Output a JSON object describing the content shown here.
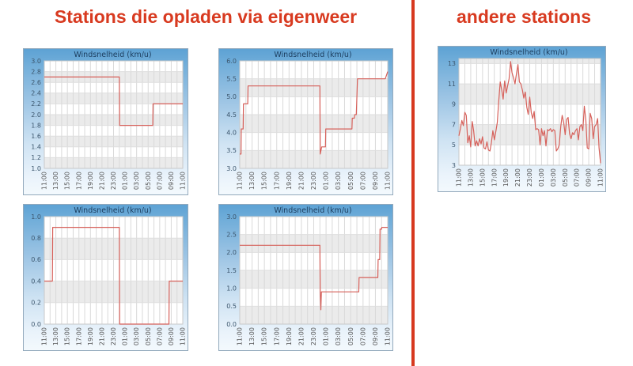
{
  "page": {
    "left_title": "Stations die opladen via eigenweer",
    "right_title": "andere stations",
    "colors": {
      "title_red": "#d83a20",
      "divider_red": "#d7381f",
      "line_red": "#d6605a",
      "panel_header_text": "#1c3d5e",
      "y_tick_text": "#3c566d",
      "x_tick_text": "#555555",
      "stripe_gray": "#ebebeb",
      "grid_gray": "#d9d9d9"
    }
  },
  "chart_data": [
    {
      "id": "eigenweer-1",
      "group": "Stations die opladen via eigenweer",
      "type": "line",
      "title": "Windsnelheid (km/u)",
      "line_color": "#d6605a",
      "ylim": [
        1.0,
        3.0
      ],
      "y_ticks": [
        1.0,
        1.2,
        1.4,
        1.6,
        1.8,
        2.0,
        2.2,
        2.4,
        2.6,
        2.8,
        3.0
      ],
      "y_decimals": 1,
      "x_unit": "hours after 11:00",
      "x_labels": [
        "11:00",
        "13:00",
        "15:00",
        "17:00",
        "19:00",
        "21:00",
        "23:00",
        "01:00",
        "03:00",
        "05:00",
        "07:00",
        "09:00",
        "11:00"
      ],
      "points": [
        [
          0,
          2.7
        ],
        [
          13.0,
          2.7
        ],
        [
          13.05,
          1.8
        ],
        [
          18.8,
          1.8
        ],
        [
          18.85,
          2.2
        ],
        [
          24,
          2.2
        ]
      ]
    },
    {
      "id": "eigenweer-2",
      "group": "Stations die opladen via eigenweer",
      "type": "line",
      "title": "Windsnelheid (km/u)",
      "line_color": "#d6605a",
      "ylim": [
        3.0,
        6.0
      ],
      "y_ticks": [
        3.0,
        3.5,
        4.0,
        4.5,
        5.0,
        5.5,
        6.0
      ],
      "y_decimals": 1,
      "x_unit": "hours after 11:00",
      "x_labels": [
        "11:00",
        "13:00",
        "15:00",
        "17:00",
        "19:00",
        "21:00",
        "23:00",
        "01:00",
        "03:00",
        "05:00",
        "07:00",
        "09:00",
        "11:00"
      ],
      "points": [
        [
          0,
          3.4
        ],
        [
          0.2,
          3.4
        ],
        [
          0.25,
          4.1
        ],
        [
          0.55,
          4.1
        ],
        [
          0.6,
          4.8
        ],
        [
          1.3,
          4.8
        ],
        [
          1.35,
          5.3
        ],
        [
          13.0,
          5.3
        ],
        [
          13.05,
          3.4
        ],
        [
          13.3,
          3.6
        ],
        [
          13.9,
          3.6
        ],
        [
          13.95,
          4.1
        ],
        [
          18.2,
          4.1
        ],
        [
          18.25,
          4.4
        ],
        [
          18.6,
          4.4
        ],
        [
          18.65,
          4.5
        ],
        [
          18.9,
          4.5
        ],
        [
          19.1,
          5.5
        ],
        [
          23.6,
          5.5
        ],
        [
          24,
          5.7
        ]
      ]
    },
    {
      "id": "eigenweer-3",
      "group": "Stations die opladen via eigenweer",
      "type": "line",
      "title": "Windsnelheid (km/u)",
      "line_color": "#d6605a",
      "ylim": [
        0.0,
        1.0
      ],
      "y_ticks": [
        0.0,
        0.2,
        0.4,
        0.6,
        0.8,
        1.0
      ],
      "y_decimals": 1,
      "x_unit": "hours after 11:00",
      "x_labels": [
        "11:00",
        "13:00",
        "15:00",
        "17:00",
        "19:00",
        "21:00",
        "23:00",
        "01:00",
        "03:00",
        "05:00",
        "07:00",
        "09:00",
        "11:00"
      ],
      "points": [
        [
          0,
          0.4
        ],
        [
          1.4,
          0.4
        ],
        [
          1.45,
          0.9
        ],
        [
          13.0,
          0.9
        ],
        [
          13.05,
          0.0
        ],
        [
          21.6,
          0.0
        ],
        [
          21.65,
          0.4
        ],
        [
          24,
          0.4
        ]
      ]
    },
    {
      "id": "eigenweer-4",
      "group": "Stations die opladen via eigenweer",
      "type": "line",
      "title": "Windsnelheid (km/u)",
      "line_color": "#d6605a",
      "ylim": [
        0.0,
        3.0
      ],
      "y_ticks": [
        0.0,
        0.5,
        1.0,
        1.5,
        2.0,
        2.5,
        3.0
      ],
      "y_decimals": 1,
      "x_unit": "hours after 11:00",
      "x_labels": [
        "11:00",
        "13:00",
        "15:00",
        "17:00",
        "19:00",
        "21:00",
        "23:00",
        "01:00",
        "03:00",
        "05:00",
        "07:00",
        "09:00",
        "11:00"
      ],
      "points": [
        [
          0,
          2.2
        ],
        [
          13.0,
          2.2
        ],
        [
          13.05,
          0.9
        ],
        [
          13.15,
          0.4
        ],
        [
          13.25,
          0.9
        ],
        [
          19.3,
          0.9
        ],
        [
          19.35,
          1.3
        ],
        [
          22.4,
          1.3
        ],
        [
          22.45,
          1.8
        ],
        [
          22.7,
          1.8
        ],
        [
          22.75,
          2.65
        ],
        [
          23.0,
          2.65
        ],
        [
          23.05,
          2.7
        ],
        [
          24,
          2.7
        ]
      ]
    },
    {
      "id": "andere-1",
      "group": "andere stations",
      "type": "line",
      "title": "Windsnelheid (km/u)",
      "line_color": "#d6605a",
      "ylim": [
        3,
        13.5
      ],
      "y_ticks": [
        3,
        5,
        7,
        9,
        11,
        13
      ],
      "y_decimals": 0,
      "x_unit": "hours after 11:00",
      "x_step": 0.25,
      "x_labels": [
        "11:00",
        "13:00",
        "15:00",
        "17:00",
        "19:00",
        "21:00",
        "23:00",
        "01:00",
        "03:00",
        "05:00",
        "07:00",
        "09:00",
        "11:00"
      ],
      "values": [
        5.9,
        6.6,
        7.4,
        6.9,
        8.2,
        7.9,
        5.2,
        5.9,
        4.8,
        7.3,
        6.4,
        4.9,
        5.4,
        4.9,
        5.6,
        5.1,
        5.8,
        4.7,
        4.6,
        5.3,
        4.5,
        4.4,
        5.2,
        6.4,
        5.5,
        6.3,
        7.2,
        9.3,
        11.2,
        10.4,
        9.5,
        11.3,
        10.1,
        10.8,
        11.5,
        13.2,
        12.1,
        11.6,
        11.0,
        12.0,
        12.9,
        11.2,
        11.0,
        10.4,
        9.6,
        10.2,
        8.7,
        8.0,
        9.7,
        8.2,
        7.6,
        8.3,
        6.5,
        6.6,
        6.5,
        5.0,
        6.6,
        5.9,
        6.4,
        4.9,
        6.5,
        6.4,
        6.6,
        6.3,
        6.5,
        6.4,
        4.4,
        4.6,
        5.0,
        6.8,
        7.9,
        7.2,
        6.0,
        7.5,
        7.7,
        6.1,
        5.6,
        6.2,
        6.0,
        6.4,
        6.6,
        5.5,
        6.8,
        7.0,
        6.4,
        8.8,
        7.4,
        4.7,
        4.6,
        8.1,
        7.6,
        5.6,
        6.8,
        7.0,
        7.6,
        4.7,
        3.2
      ]
    }
  ]
}
